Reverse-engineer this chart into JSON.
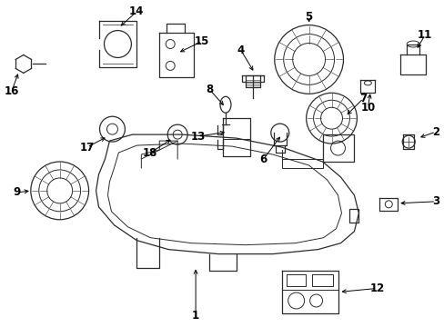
{
  "background_color": "#ffffff",
  "line_color": "#2a2a2a",
  "text_color": "#000000",
  "figsize": [
    4.89,
    3.6
  ],
  "dpi": 100
}
